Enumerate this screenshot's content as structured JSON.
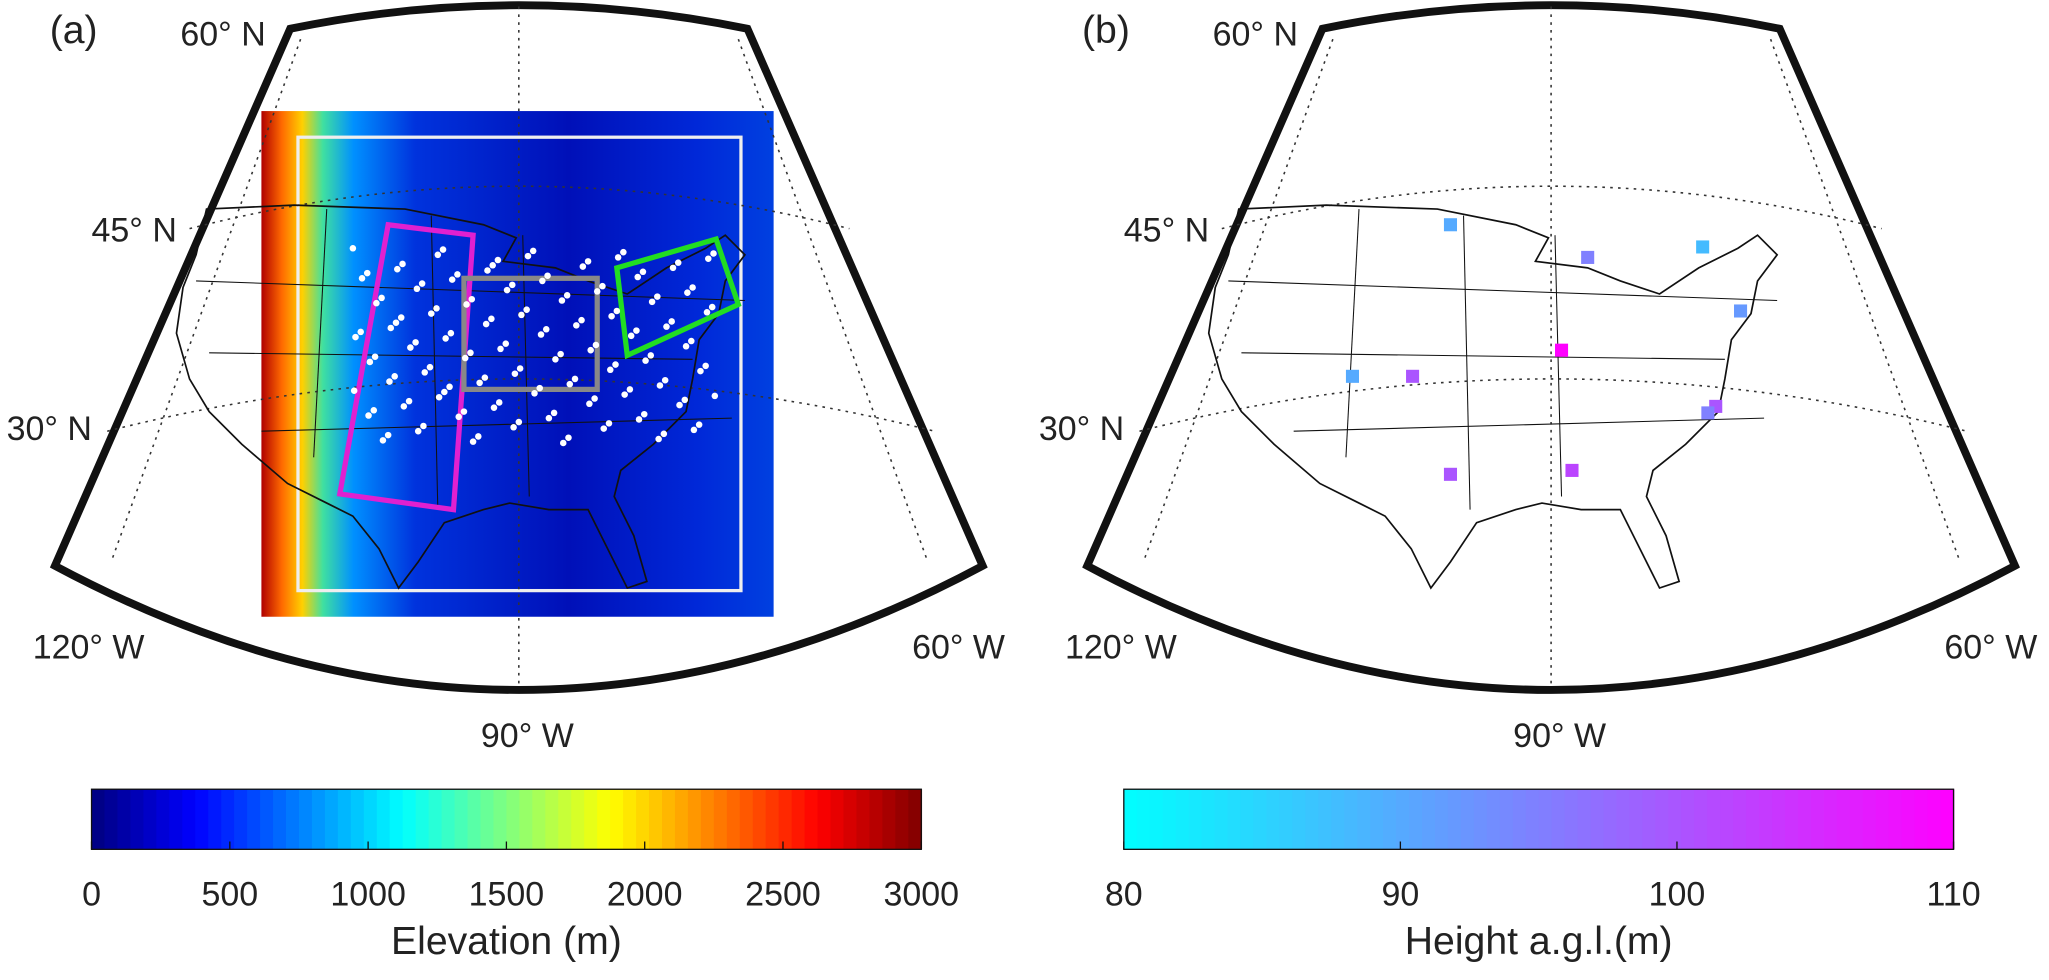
{
  "panels": [
    {
      "label": "(a)",
      "lat_labels": [
        "60° N",
        "45° N",
        "30° N"
      ],
      "lon_labels": [
        "120° W",
        "90° W",
        "60° W"
      ],
      "colorbar": {
        "label": "Elevation (m)",
        "colormap": "jet",
        "lim": [
          0,
          3000
        ],
        "ticks": [
          0,
          500,
          1000,
          1500,
          2000,
          2500,
          3000
        ]
      }
    },
    {
      "label": "(b)",
      "lat_labels": [
        "60° N",
        "45° N",
        "30° N"
      ],
      "lon_labels": [
        "120° W",
        "90° W",
        "60° W"
      ],
      "colorbar": {
        "label": "Height a.g.l.(m)",
        "colormap": "cool",
        "lim": [
          80,
          110
        ],
        "ticks": [
          80,
          90,
          100,
          110
        ]
      },
      "stations": [
        90,
        95,
        88,
        92,
        110,
        90,
        100,
        100,
        95,
        100,
        102
      ]
    }
  ]
}
